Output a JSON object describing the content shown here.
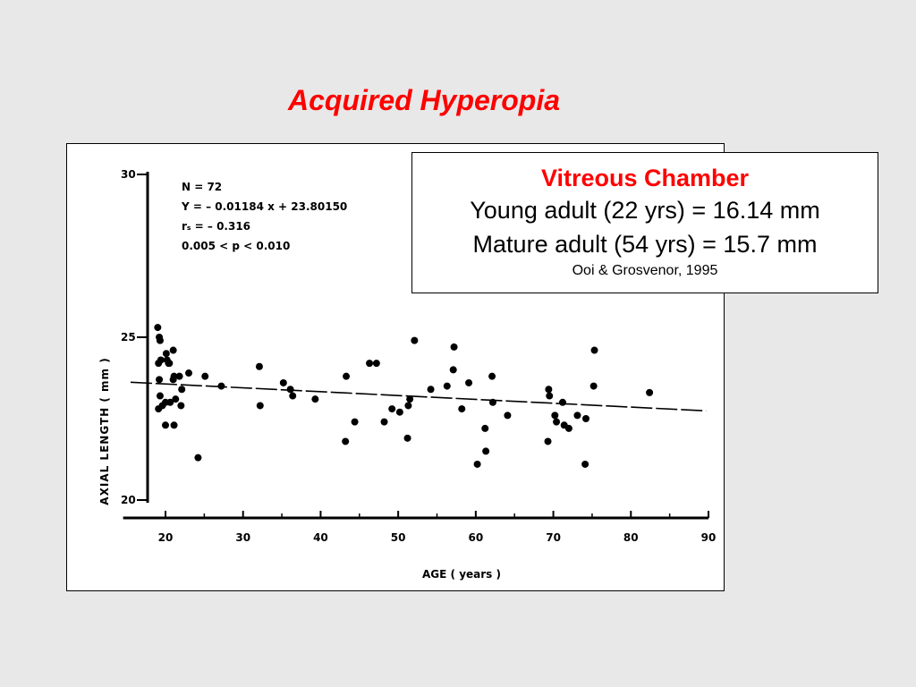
{
  "slide": {
    "title": "Acquired Hyperopia",
    "title_color": "#ff0000",
    "background": "#e8e8e8"
  },
  "info_box": {
    "heading": "Vitreous Chamber",
    "heading_color": "#ff0000",
    "line1": "Young adult (22 yrs) = 16.14 mm",
    "line2": "Mature adult (54 yrs) = 15.7 mm",
    "citation": "Ooi & Grosvenor, 1995"
  },
  "chart_data": {
    "type": "scatter",
    "xlabel": "AGE  ( years )",
    "ylabel": "AXIAL  LENGTH  ( mm )",
    "xlim": [
      15,
      90
    ],
    "ylim": [
      20,
      30
    ],
    "xticks": [
      20,
      30,
      40,
      50,
      60,
      70,
      80,
      90
    ],
    "yticks": [
      20,
      25,
      30
    ],
    "grid": false,
    "annotations": [
      "N = 72",
      "Y = – 0.01184 x + 23.80150",
      "rₛ = – 0.316",
      "0.005 < p < 0.010"
    ],
    "regression": {
      "slope": -0.01184,
      "intercept": 23.8015,
      "x_range": [
        15,
        90
      ],
      "style": "dashed"
    },
    "points": [
      [
        19.0,
        25.3
      ],
      [
        19.2,
        25.0
      ],
      [
        19.3,
        24.9
      ],
      [
        19.1,
        24.2
      ],
      [
        19.4,
        24.3
      ],
      [
        19.2,
        23.7
      ],
      [
        19.3,
        23.2
      ],
      [
        19.1,
        22.8
      ],
      [
        19.6,
        22.9
      ],
      [
        20.0,
        23.0
      ],
      [
        20.1,
        24.5
      ],
      [
        20.2,
        24.3
      ],
      [
        20.4,
        24.2
      ],
      [
        20.0,
        22.3
      ],
      [
        20.6,
        23.0
      ],
      [
        20.5,
        24.2
      ],
      [
        21.0,
        24.6
      ],
      [
        21.1,
        23.8
      ],
      [
        21.0,
        23.7
      ],
      [
        21.3,
        23.1
      ],
      [
        21.1,
        22.3
      ],
      [
        21.8,
        23.8
      ],
      [
        22.0,
        22.9
      ],
      [
        22.1,
        23.4
      ],
      [
        23.0,
        23.9
      ],
      [
        24.2,
        21.3
      ],
      [
        25.1,
        23.8
      ],
      [
        27.2,
        23.5
      ],
      [
        32.1,
        24.1
      ],
      [
        32.2,
        22.9
      ],
      [
        35.2,
        23.6
      ],
      [
        36.1,
        23.4
      ],
      [
        36.4,
        23.2
      ],
      [
        39.3,
        23.1
      ],
      [
        43.2,
        21.8
      ],
      [
        43.3,
        23.8
      ],
      [
        44.4,
        22.4
      ],
      [
        46.3,
        24.2
      ],
      [
        47.2,
        24.2
      ],
      [
        48.2,
        22.4
      ],
      [
        49.2,
        22.8
      ],
      [
        50.2,
        22.7
      ],
      [
        51.2,
        21.9
      ],
      [
        51.3,
        22.9
      ],
      [
        51.5,
        23.1
      ],
      [
        52.1,
        24.9
      ],
      [
        54.2,
        23.4
      ],
      [
        56.3,
        23.5
      ],
      [
        57.2,
        24.7
      ],
      [
        57.1,
        24.0
      ],
      [
        58.2,
        22.8
      ],
      [
        59.1,
        23.6
      ],
      [
        60.2,
        21.1
      ],
      [
        61.2,
        22.2
      ],
      [
        61.3,
        21.5
      ],
      [
        62.1,
        23.8
      ],
      [
        62.2,
        23.0
      ],
      [
        64.1,
        22.6
      ],
      [
        69.3,
        21.8
      ],
      [
        69.4,
        23.4
      ],
      [
        69.5,
        23.2
      ],
      [
        70.2,
        22.6
      ],
      [
        70.4,
        22.4
      ],
      [
        71.2,
        23.0
      ],
      [
        71.4,
        22.3
      ],
      [
        73.1,
        22.6
      ],
      [
        74.1,
        21.1
      ],
      [
        74.2,
        22.5
      ],
      [
        75.2,
        23.5
      ],
      [
        75.3,
        24.6
      ],
      [
        82.4,
        23.3
      ],
      [
        72.0,
        22.2
      ]
    ]
  }
}
